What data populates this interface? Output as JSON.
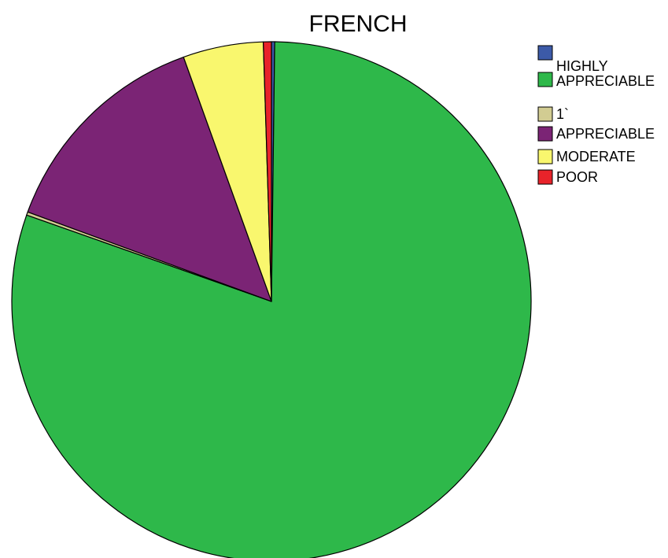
{
  "chart_data": {
    "type": "pie",
    "title": "FRENCH",
    "legend_position": "top-right",
    "start_angle": "12 o'clock",
    "direction": "clockwise",
    "slices": [
      {
        "label": "",
        "value": 0.2,
        "color": "#3c5aa8"
      },
      {
        "label": "HIGHLY APPRECIABLE",
        "value": 80.2,
        "color": "#2eb84a"
      },
      {
        "label": "1`",
        "value": 0.2,
        "color": "#d2cc92"
      },
      {
        "label": "APPRECIABLE",
        "value": 13.9,
        "color": "#7b2475"
      },
      {
        "label": "MODERATE",
        "value": 5.0,
        "color": "#f9f76e"
      },
      {
        "label": "POOR",
        "value": 0.5,
        "color": "#e8232a"
      }
    ]
  }
}
